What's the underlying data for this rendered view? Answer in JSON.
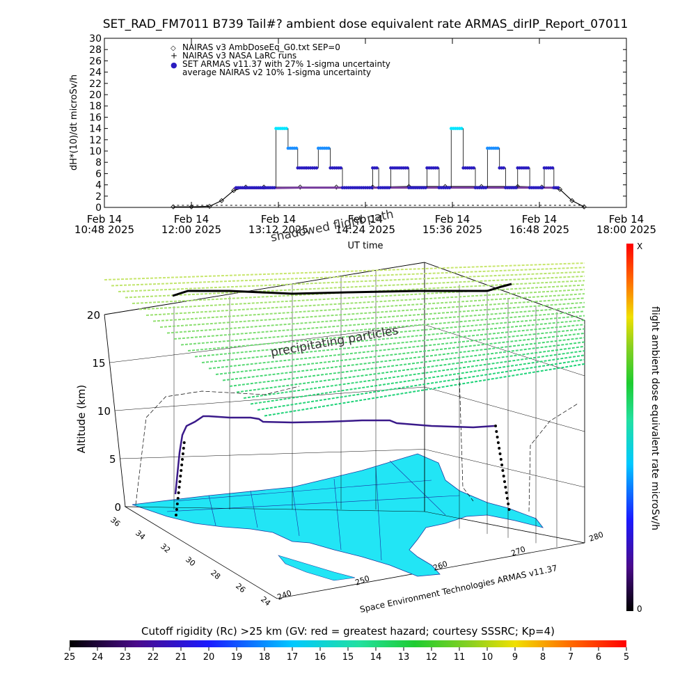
{
  "title": "SET_RAD_FM7011  B739 Tail#? ambient dose equivalent rate ARMAS_dirIP_Report_07011",
  "colors": {
    "armas_dots": "#2a1cc0",
    "armas_peak_high": "#00e5ff",
    "armas_peak_mid": "#1e90ff",
    "nairas_v2": "#7a3fa0",
    "map_land": "#22e5f5",
    "mesh": "#000000",
    "grid_top_green": "#7ec850",
    "grid_top_yellow": "#c8e070"
  },
  "chart_data": [
    {
      "type": "scatter",
      "title": "SET_RAD_FM7011  B739 Tail#? ambient dose equivalent rate ARMAS_dirIP_Report_07011",
      "xlabel": "UT time",
      "ylabel": "dH*(10)/dt microSv/h",
      "ylim": [
        0,
        30
      ],
      "yticks": [
        "0",
        "2",
        "4",
        "6",
        "8",
        "10",
        "12",
        "14",
        "16",
        "18",
        "20",
        "22",
        "24",
        "26",
        "28",
        "30"
      ],
      "xlim": [
        "10:48",
        "18:00"
      ],
      "xtick_dates": [
        "Feb 14",
        "Feb 14",
        "Feb 14",
        "Feb 14",
        "Feb 14",
        "Feb 14",
        "Feb 14"
      ],
      "xtick_times": [
        "10:48 2025",
        "12:00 2025",
        "13:12 2025",
        "14:24 2025",
        "15:36 2025",
        "16:48 2025",
        "18:00 2025"
      ],
      "legend": [
        {
          "marker": "◇",
          "label": "NAIRAS v3 AmbDoseEq_G0.txt SEP=0"
        },
        {
          "marker": "+",
          "label": "NAIRAS v3 NASA LaRC runs"
        },
        {
          "marker": "●",
          "label": "SET ARMAS v11.37 with 27% 1-sigma uncertainty"
        },
        {
          "marker": "",
          "label": "average NAIRAS v2 10% 1-sigma uncertainty"
        }
      ],
      "legend_position": "top-left",
      "series": [
        {
          "name": "NAIRAS v3 AmbDoseEq_G0.txt SEP=0",
          "x": [
            "11:45",
            "12:00",
            "12:15",
            "12:25",
            "12:35",
            "12:45",
            "13:00",
            "13:30",
            "14:00",
            "14:30",
            "15:00",
            "15:30",
            "16:00",
            "16:30",
            "16:50",
            "17:05",
            "17:15",
            "17:25"
          ],
          "y": [
            0.1,
            0.1,
            0.2,
            1.2,
            3.0,
            3.6,
            3.6,
            3.6,
            3.6,
            3.6,
            3.7,
            3.7,
            3.7,
            3.7,
            3.6,
            3.2,
            1.2,
            0.1
          ]
        },
        {
          "name": "SET ARMAS v11.37 with 27% 1-sigma uncertainty",
          "x": [
            "12:37",
            "12:45",
            "13:00",
            "13:10",
            "13:20",
            "13:28",
            "13:35",
            "13:45",
            "13:55",
            "14:05",
            "14:30",
            "14:35",
            "14:45",
            "15:00",
            "15:15",
            "15:25",
            "15:35",
            "15:45",
            "15:55",
            "16:05",
            "16:15",
            "16:20",
            "16:30",
            "16:40",
            "16:52",
            "17:00"
          ],
          "y": [
            3.5,
            3.5,
            3.5,
            14.0,
            10.5,
            7.0,
            7.0,
            10.5,
            7.0,
            3.5,
            7.0,
            3.5,
            7.0,
            3.5,
            7.0,
            3.5,
            14.0,
            7.0,
            3.5,
            10.5,
            7.0,
            3.5,
            7.0,
            3.5,
            7.0,
            3.5
          ]
        },
        {
          "name": "average NAIRAS v2 10% 1-sigma uncertainty",
          "x": [
            "12:35",
            "13:00",
            "13:30",
            "14:00",
            "14:30",
            "15:00",
            "15:30",
            "16:00",
            "16:30",
            "17:00"
          ],
          "y": [
            3.4,
            3.4,
            3.5,
            3.5,
            3.5,
            3.5,
            3.5,
            3.5,
            3.5,
            3.5
          ]
        }
      ]
    },
    {
      "type": "surface3d",
      "xlabel": "Space Environment Technologies ARMAS v11.37",
      "zlabel": "Altitude (km)",
      "zlim": [
        0,
        20
      ],
      "zticks": [
        "0",
        "5",
        "10",
        "15",
        "20"
      ],
      "lat_ticks": [
        "36",
        "34",
        "32",
        "30",
        "28",
        "26",
        "24"
      ],
      "lon_ticks": [
        "240",
        "250",
        "260",
        "270",
        "280"
      ],
      "annotations": [
        "shadowed flight path",
        "precipitating particles"
      ],
      "flight": {
        "cruise_altitude_km": 9.5,
        "shadow_altitude_km": 22
      }
    }
  ],
  "right_colorbar": {
    "label": "flight ambient dose equivalent rate microSv/h",
    "top_label": "X",
    "bottom_label": "0"
  },
  "bottom_colorbar": {
    "title": "Cutoff rigidity (Rc) >25 km (GV: red = greatest hazard; courtesy SSSRC; Kp=4)",
    "ticks": [
      "25",
      "24",
      "23",
      "22",
      "21",
      "20",
      "19",
      "18",
      "17",
      "16",
      "15",
      "14",
      "13",
      "12",
      "11",
      "10",
      "9",
      "8",
      "7",
      "6",
      "5"
    ]
  }
}
